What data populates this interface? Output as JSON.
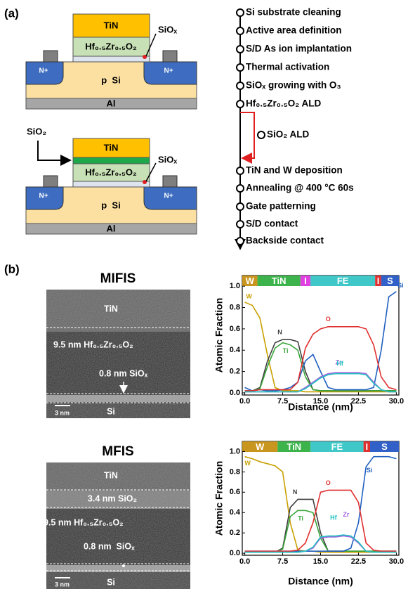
{
  "panel_a": {
    "label": "(a)",
    "devices": [
      {
        "gate": "TiN",
        "ferroelectric": "Hf₀.₅Zr₀.₅O₂",
        "interlayer": "SiOₓ",
        "source": "N+",
        "drain": "N+",
        "substrate": "p  Si",
        "back": "Al"
      },
      {
        "insulator": "SiO₂",
        "gate": "TiN",
        "ferroelectric": "Hf₀.₅Zr₀.₅O₂",
        "interlayer": "SiOₓ",
        "source": "N+",
        "drain": "N+",
        "substrate": "p  Si",
        "back": "Al"
      }
    ],
    "process_steps": [
      "Si substrate cleaning",
      "Active area definition",
      "S/D As ion implantation",
      "Thermal activation",
      "SiOₓ growing with O₃",
      "Hf₀.₅Zr₀.₅O₂ ALD",
      "TiN and W deposition",
      "Annealing @ 400 °C 60s",
      "Gate patterning",
      "S/D contact",
      "Backside contact"
    ],
    "branch_step": "SiO₂ ALD"
  },
  "panel_b": {
    "label": "(b)",
    "images": [
      {
        "title": "MIFIS",
        "top": "TiN",
        "ferroelectric": "9.5 nm Hf₀.₅Zr₀.₅O₂",
        "interlayer": "0.8 nm SiOₓ",
        "scale_bar": "3 nm",
        "substrate": "Si"
      },
      {
        "title": "MFIS",
        "top": "TiN",
        "insulator": "3.4 nm SiO₂",
        "ferroelectric": "9.5 nm Hf₀.₅Zr₀.₅O₂",
        "interlayer": "0.8 nm  SiOₓ",
        "scale_bar": "3 nm",
        "substrate": "Si"
      }
    ]
  },
  "chart_data": [
    {
      "type": "line",
      "x_label": "Distance (nm)",
      "y_label": "Atomic Fraction",
      "xlim": [
        -0.5,
        30.5
      ],
      "ylim": [
        -0.02,
        1.1
      ],
      "xticks": [
        {
          "value": 0,
          "label": "0.0"
        },
        {
          "value": 7.5,
          "label": "7.5"
        },
        {
          "value": 15,
          "label": "15.0"
        },
        {
          "value": 22.5,
          "label": "22.5"
        },
        {
          "value": 30,
          "label": "30.0"
        }
      ],
      "yticks": [
        {
          "value": 0,
          "label": "0.0"
        },
        {
          "value": 0.2,
          "label": "0.2"
        },
        {
          "value": 0.4,
          "label": "0.4"
        },
        {
          "value": 0.6,
          "label": "0.6"
        },
        {
          "value": 0.8,
          "label": "0.8"
        },
        {
          "value": 1,
          "label": "1.0"
        }
      ],
      "layers": [
        {
          "label": "W",
          "start": -0.5,
          "end": 2.5,
          "color": "#c8961e"
        },
        {
          "label": "TiN",
          "start": 2.5,
          "end": 11,
          "color": "#3cb44b"
        },
        {
          "label": "I",
          "start": 11,
          "end": 13,
          "color": "#e040e0"
        },
        {
          "label": "FE",
          "start": 13,
          "end": 25.8,
          "color": "#40c8c8"
        },
        {
          "label": "I",
          "start": 25.8,
          "end": 27,
          "color": "#e03030"
        },
        {
          "label": "S",
          "start": 27,
          "end": 30.5,
          "color": "#3060c8"
        }
      ],
      "x": [
        0,
        1.5,
        3,
        4.5,
        6,
        7.5,
        9,
        10.5,
        12,
        13.5,
        15,
        16.5,
        18,
        19.5,
        21,
        22.5,
        24,
        25.5,
        27,
        28.5,
        30
      ],
      "series": [
        {
          "name": "W",
          "color": "#c8a000",
          "values": [
            0.85,
            0.82,
            0.7,
            0.35,
            0.05,
            0.02,
            0.02,
            0.02,
            0.01,
            0.01,
            0.01,
            0.01,
            0.01,
            0.01,
            0.01,
            0.01,
            0.01,
            0.01,
            0.01,
            0.01,
            0.01
          ]
        },
        {
          "name": "N",
          "color": "#404040",
          "values": [
            0.02,
            0.02,
            0.05,
            0.3,
            0.47,
            0.5,
            0.5,
            0.48,
            0.2,
            0.03,
            0.02,
            0.02,
            0.02,
            0.02,
            0.02,
            0.02,
            0.02,
            0.02,
            0.02,
            0.02,
            0.02
          ]
        },
        {
          "name": "Ti",
          "color": "#3aa63a",
          "values": [
            0.02,
            0.02,
            0.04,
            0.25,
            0.42,
            0.47,
            0.45,
            0.4,
            0.15,
            0.03,
            0.02,
            0.02,
            0.02,
            0.02,
            0.02,
            0.02,
            0.02,
            0.02,
            0.02,
            0.02,
            0.02
          ]
        },
        {
          "name": "Si",
          "color": "#2060c0",
          "values": [
            0.05,
            0.02,
            0.03,
            0.02,
            0.02,
            0.03,
            0.05,
            0.1,
            0.3,
            0.36,
            0.2,
            0.05,
            0.03,
            0.03,
            0.03,
            0.03,
            0.03,
            0.05,
            0.4,
            0.9,
            0.95
          ]
        },
        {
          "name": "O",
          "color": "#e03030",
          "values": [
            0.02,
            0.02,
            0.03,
            0.03,
            0.03,
            0.03,
            0.03,
            0.1,
            0.42,
            0.55,
            0.6,
            0.62,
            0.62,
            0.62,
            0.62,
            0.62,
            0.6,
            0.45,
            0.15,
            0.05,
            0.03
          ]
        },
        {
          "name": "Zr",
          "color": "#a060e0",
          "values": [
            0.01,
            0.01,
            0.01,
            0.01,
            0.01,
            0.01,
            0.01,
            0.01,
            0.05,
            0.1,
            0.15,
            0.18,
            0.19,
            0.19,
            0.19,
            0.19,
            0.18,
            0.1,
            0.03,
            0.01,
            0.01
          ]
        },
        {
          "name": "Hf",
          "color": "#20c0c0",
          "values": [
            0.01,
            0.01,
            0.01,
            0.01,
            0.01,
            0.01,
            0.01,
            0.01,
            0.04,
            0.09,
            0.14,
            0.17,
            0.18,
            0.18,
            0.18,
            0.18,
            0.17,
            0.09,
            0.03,
            0.01,
            0.01
          ]
        }
      ]
    },
    {
      "type": "line",
      "x_label": "Distance (nm)",
      "y_label": "Atomic Fraction",
      "xlim": [
        -0.5,
        30.5
      ],
      "ylim": [
        -0.02,
        1.1
      ],
      "xticks": [
        {
          "value": 0,
          "label": "0.0"
        },
        {
          "value": 7.5,
          "label": "7.5"
        },
        {
          "value": 15,
          "label": "15.0"
        },
        {
          "value": 22.5,
          "label": "22.5"
        },
        {
          "value": 30,
          "label": "30.0"
        }
      ],
      "yticks": [
        {
          "value": 0,
          "label": "0.0"
        },
        {
          "value": 0.2,
          "label": "0.2"
        },
        {
          "value": 0.4,
          "label": "0.4"
        },
        {
          "value": 0.6,
          "label": "0.6"
        },
        {
          "value": 0.8,
          "label": "0.8"
        },
        {
          "value": 1,
          "label": "1.0"
        }
      ],
      "layers": [
        {
          "label": "W",
          "start": -0.5,
          "end": 6.5,
          "color": "#c8961e"
        },
        {
          "label": "TiN",
          "start": 6.5,
          "end": 13,
          "color": "#3cb44b"
        },
        {
          "label": "FE",
          "start": 13,
          "end": 23.5,
          "color": "#40c8c8"
        },
        {
          "label": "I",
          "start": 23.5,
          "end": 24.8,
          "color": "#e03030"
        },
        {
          "label": "S",
          "start": 24.8,
          "end": 30.5,
          "color": "#3060c8"
        }
      ],
      "x": [
        0,
        1.5,
        3,
        4.5,
        6,
        7.5,
        9,
        10.5,
        12,
        13.5,
        15,
        16.5,
        18,
        19.5,
        21,
        22.5,
        24,
        25.5,
        27,
        28.5,
        30
      ],
      "series": [
        {
          "name": "W",
          "color": "#c8a000",
          "values": [
            0.95,
            0.93,
            0.9,
            0.88,
            0.86,
            0.8,
            0.3,
            0.03,
            0.02,
            0.02,
            0.01,
            0.01,
            0.01,
            0.01,
            0.01,
            0.01,
            0.01,
            0.01,
            0.01,
            0.01,
            0.01
          ]
        },
        {
          "name": "N",
          "color": "#404040",
          "values": [
            0.01,
            0.01,
            0.01,
            0.01,
            0.01,
            0.05,
            0.45,
            0.53,
            0.53,
            0.53,
            0.2,
            0.02,
            0.02,
            0.02,
            0.02,
            0.02,
            0.02,
            0.02,
            0.02,
            0.02,
            0.02
          ]
        },
        {
          "name": "Ti",
          "color": "#3aa63a",
          "values": [
            0.01,
            0.01,
            0.01,
            0.01,
            0.01,
            0.04,
            0.36,
            0.42,
            0.42,
            0.4,
            0.15,
            0.02,
            0.02,
            0.02,
            0.02,
            0.02,
            0.02,
            0.02,
            0.02,
            0.02,
            0.02
          ]
        },
        {
          "name": "Si",
          "color": "#2060c0",
          "values": [
            0.02,
            0.02,
            0.02,
            0.02,
            0.02,
            0.02,
            0.02,
            0.02,
            0.02,
            0.02,
            0.02,
            0.02,
            0.02,
            0.02,
            0.05,
            0.3,
            0.85,
            0.95,
            0.95,
            0.95,
            0.93
          ]
        },
        {
          "name": "O",
          "color": "#e03030",
          "values": [
            0.02,
            0.02,
            0.02,
            0.02,
            0.02,
            0.02,
            0.02,
            0.03,
            0.1,
            0.3,
            0.6,
            0.62,
            0.62,
            0.62,
            0.62,
            0.5,
            0.1,
            0.03,
            0.02,
            0.02,
            0.02
          ]
        },
        {
          "name": "Zr",
          "color": "#a060e0",
          "values": [
            0.01,
            0.01,
            0.01,
            0.01,
            0.01,
            0.01,
            0.01,
            0.01,
            0.02,
            0.05,
            0.15,
            0.16,
            0.16,
            0.17,
            0.16,
            0.1,
            0.02,
            0.01,
            0.01,
            0.01,
            0.01
          ]
        },
        {
          "name": "Hf",
          "color": "#20c0c0",
          "values": [
            0.01,
            0.01,
            0.01,
            0.01,
            0.01,
            0.01,
            0.01,
            0.01,
            0.02,
            0.06,
            0.16,
            0.17,
            0.17,
            0.18,
            0.17,
            0.11,
            0.02,
            0.01,
            0.01,
            0.01,
            0.01
          ]
        }
      ]
    }
  ]
}
